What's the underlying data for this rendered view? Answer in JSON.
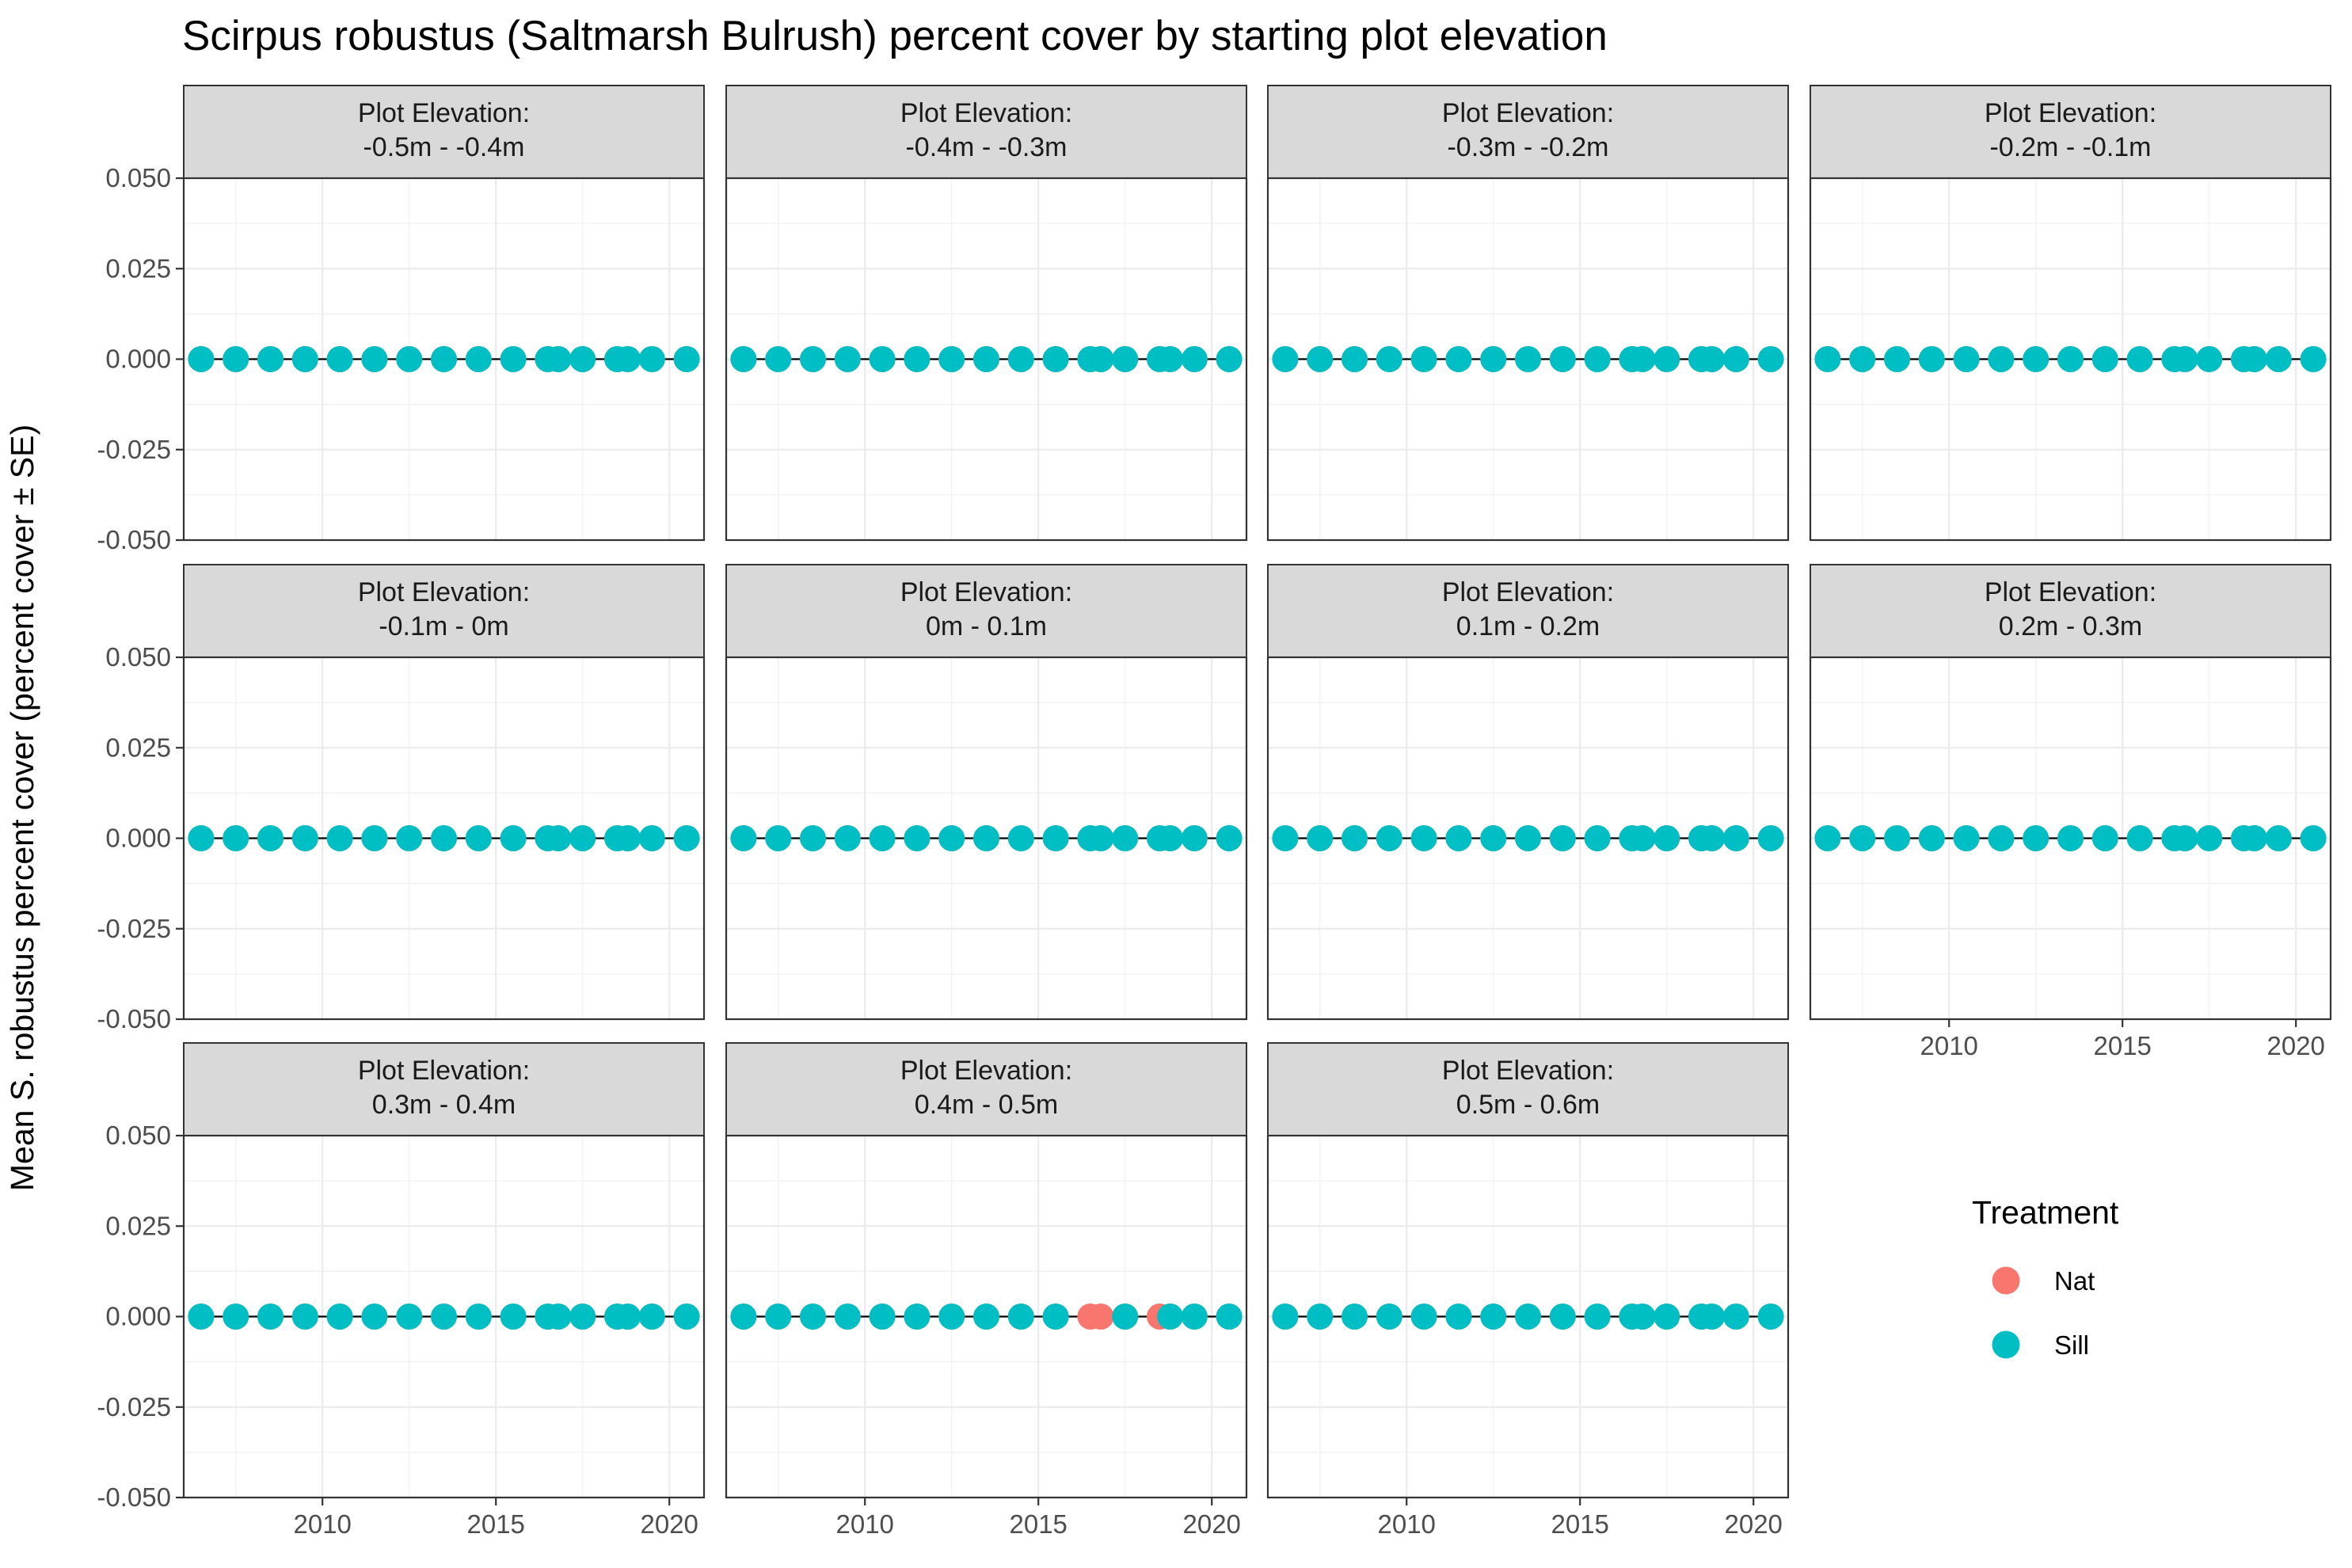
{
  "chart_data": {
    "type": "scatter",
    "title": "Scirpus robustus (Saltmarsh Bulrush) percent cover by starting plot elevation",
    "ylabel": "Mean S. robustus percent cover (percent cover ± SE)",
    "xlabel": "",
    "ylim": [
      -0.05,
      0.05
    ],
    "xlim": [
      2006,
      2021
    ],
    "y_ticks": [
      "0.050",
      "0.025",
      "0.000",
      "-0.025",
      "-0.050"
    ],
    "x_ticks": [
      "2010",
      "2015",
      "2020"
    ],
    "grid": true,
    "legend": {
      "title": "Treatment",
      "position": "right",
      "entries": [
        {
          "name": "Nat",
          "color": "#F8766D"
        },
        {
          "name": "Sill",
          "color": "#00BFC4"
        }
      ]
    },
    "years": [
      2006.5,
      2007.5,
      2008.5,
      2009.5,
      2010.5,
      2011.5,
      2012.5,
      2013.5,
      2014.5,
      2015.5,
      2016.5,
      2016.8,
      2017.5,
      2018.5,
      2018.8,
      2019.5,
      2020.5
    ],
    "panels": [
      {
        "label_line1": "Plot Elevation:",
        "label_line2": "-0.5m - -0.4m",
        "series": [
          {
            "name": "Nat",
            "y": [
              0,
              0,
              0,
              0,
              0,
              0,
              0,
              0,
              0,
              0,
              0,
              0,
              0,
              0,
              0,
              0,
              0
            ]
          },
          {
            "name": "Sill",
            "y": [
              0,
              0,
              0,
              0,
              0,
              0,
              0,
              0,
              0,
              0,
              0,
              0,
              0,
              0,
              0,
              0,
              0
            ]
          }
        ]
      },
      {
        "label_line1": "Plot Elevation:",
        "label_line2": "-0.4m - -0.3m",
        "series": [
          {
            "name": "Nat",
            "y": [
              0,
              0,
              0,
              0,
              0,
              0,
              0,
              0,
              0,
              0,
              0,
              0,
              0,
              0,
              0,
              0,
              0
            ]
          },
          {
            "name": "Sill",
            "y": [
              0,
              0,
              0,
              0,
              0,
              0,
              0,
              0,
              0,
              0,
              0,
              0,
              0,
              0,
              0,
              0,
              0
            ]
          }
        ]
      },
      {
        "label_line1": "Plot Elevation:",
        "label_line2": "-0.3m - -0.2m",
        "series": [
          {
            "name": "Nat",
            "y": [
              0,
              0,
              0,
              0,
              0,
              0,
              0,
              0,
              0,
              0,
              0,
              0,
              0,
              0,
              0,
              0,
              0
            ]
          },
          {
            "name": "Sill",
            "y": [
              0,
              0,
              0,
              0,
              0,
              0,
              0,
              0,
              0,
              0,
              0,
              0,
              0,
              0,
              0,
              0,
              0
            ]
          }
        ]
      },
      {
        "label_line1": "Plot Elevation:",
        "label_line2": "-0.2m - -0.1m",
        "series": [
          {
            "name": "Nat",
            "y": [
              0,
              0,
              0,
              0,
              0,
              0,
              0,
              0,
              0,
              0,
              0,
              0,
              0,
              0,
              0,
              0,
              0
            ]
          },
          {
            "name": "Sill",
            "y": [
              0,
              0,
              0,
              0,
              0,
              0,
              0,
              0,
              0,
              0,
              0,
              0,
              0,
              0,
              0,
              0,
              0
            ]
          }
        ]
      },
      {
        "label_line1": "Plot Elevation:",
        "label_line2": "-0.1m - 0m",
        "series": [
          {
            "name": "Nat",
            "y": [
              0,
              0,
              0,
              0,
              0,
              0,
              0,
              0,
              0,
              0,
              0,
              0,
              0,
              0,
              0,
              0,
              0
            ]
          },
          {
            "name": "Sill",
            "y": [
              0,
              0,
              0,
              0,
              0,
              0,
              0,
              0,
              0,
              0,
              0,
              0,
              0,
              0,
              0,
              0,
              0
            ]
          }
        ]
      },
      {
        "label_line1": "Plot Elevation:",
        "label_line2": "0m - 0.1m",
        "series": [
          {
            "name": "Nat",
            "y": [
              0,
              0,
              0,
              0,
              0,
              0,
              0,
              0,
              0,
              0,
              0,
              0,
              0,
              0,
              0,
              0,
              0
            ]
          },
          {
            "name": "Sill",
            "y": [
              0,
              0,
              0,
              0,
              0,
              0,
              0,
              0,
              0,
              0,
              0,
              0,
              0,
              0,
              0,
              0,
              0
            ]
          }
        ]
      },
      {
        "label_line1": "Plot Elevation:",
        "label_line2": "0.1m - 0.2m",
        "series": [
          {
            "name": "Nat",
            "y": [
              0,
              0,
              0,
              0,
              0,
              0,
              0,
              0,
              0,
              0,
              0,
              0,
              0,
              0,
              0,
              0,
              0
            ]
          },
          {
            "name": "Sill",
            "y": [
              0,
              0,
              0,
              0,
              0,
              0,
              0,
              0,
              0,
              0,
              0,
              0,
              0,
              0,
              0,
              0,
              0
            ]
          }
        ]
      },
      {
        "label_line1": "Plot Elevation:",
        "label_line2": "0.2m - 0.3m",
        "series": [
          {
            "name": "Nat",
            "y": [
              0,
              0,
              0,
              0,
              0,
              0,
              0,
              0,
              0,
              0,
              0,
              0,
              0,
              0,
              0,
              0,
              0
            ]
          },
          {
            "name": "Sill",
            "y": [
              0,
              0,
              0,
              0,
              0,
              0,
              0,
              0,
              0,
              0,
              0,
              0,
              0,
              0,
              0,
              0,
              0
            ]
          }
        ]
      },
      {
        "label_line1": "Plot Elevation:",
        "label_line2": "0.3m - 0.4m",
        "series": [
          {
            "name": "Nat",
            "y": [
              0,
              0,
              0,
              0,
              0,
              0,
              0,
              0,
              0,
              0,
              0,
              0,
              0,
              0,
              0,
              0,
              0
            ]
          },
          {
            "name": "Sill",
            "y": [
              0,
              0,
              0,
              0,
              0,
              0,
              0,
              0,
              0,
              0,
              0,
              0,
              0,
              0,
              0,
              0,
              0
            ]
          }
        ]
      },
      {
        "label_line1": "Plot Elevation:",
        "label_line2": "0.4m - 0.5m",
        "series": [
          {
            "name": "Nat",
            "y": [
              0,
              0,
              0,
              0,
              0,
              0,
              0,
              0,
              0,
              0,
              0,
              0,
              0,
              0,
              0,
              0,
              0
            ]
          },
          {
            "name": "Sill",
            "y": [
              0,
              0,
              0,
              0,
              0,
              0,
              0,
              0,
              0,
              0,
              null,
              null,
              0,
              null,
              0,
              0,
              0
            ]
          }
        ]
      },
      {
        "label_line1": "Plot Elevation:",
        "label_line2": "0.5m - 0.6m",
        "series": [
          {
            "name": "Nat",
            "y": [
              0,
              0,
              0,
              0,
              0,
              0,
              0,
              0,
              0,
              0,
              0,
              0,
              0,
              0,
              0,
              0,
              0
            ]
          },
          {
            "name": "Sill",
            "y": [
              0,
              0,
              0,
              0,
              0,
              0,
              0,
              0,
              0,
              0,
              0,
              0,
              0,
              0,
              0,
              0,
              0
            ]
          }
        ]
      }
    ]
  }
}
